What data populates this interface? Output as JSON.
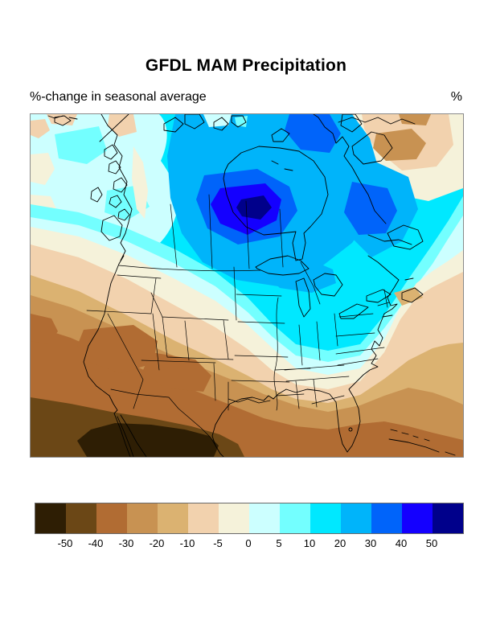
{
  "header": {
    "title": "GFDL MAM Precipitation",
    "subtitle": "%-change in seasonal average",
    "unit_label": "%"
  },
  "colorbar": {
    "colors": [
      "#2e1e04",
      "#6b4716",
      "#b16c33",
      "#c89252",
      "#dbb271",
      "#f2d2ae",
      "#f5f2da",
      "#ccffff",
      "#73ffff",
      "#00e8ff",
      "#00b4fa",
      "#0064fa",
      "#1400ff",
      "#00008b"
    ],
    "tick_labels": [
      "-50",
      "-40",
      "-30",
      "-20",
      "-10",
      "-5",
      "0",
      "5",
      "10",
      "20",
      "30",
      "40",
      "50"
    ]
  },
  "chart_data": {
    "type": "heatmap",
    "subtype": "filled-contour-geographic-map",
    "title": "GFDL MAM Precipitation",
    "subtitle": "%-change in seasonal average",
    "units": "%",
    "region_shown": "North America",
    "legend_position": "bottom",
    "contour_levels": [
      -50,
      -40,
      -30,
      -20,
      -10,
      -5,
      0,
      5,
      10,
      20,
      30,
      40,
      50
    ],
    "palette_hex": [
      "#2e1e04",
      "#6b4716",
      "#b16c33",
      "#c89252",
      "#dbb271",
      "#f2d2ae",
      "#f5f2da",
      "#ccffff",
      "#73ffff",
      "#00e8ff",
      "#00b4fa",
      "#0064fa",
      "#1400ff",
      "#00008b"
    ],
    "readings": [
      {
        "area": "Hudson Bay / central Canada maximum",
        "value_pct": "+40 to +50"
      },
      {
        "area": "Baffin Island and interior Quebec",
        "value_pct": "+30 to +40"
      },
      {
        "area": "Northern Canada broadly",
        "value_pct": "+10 to +30"
      },
      {
        "area": "Southern Canada, Great Lakes, northeastern US",
        "value_pct": "+5 to +20"
      },
      {
        "area": "Iowa / upper Midwest patch",
        "value_pct": "+20 to +30"
      },
      {
        "area": "Central US plains transition",
        "value_pct": "-5 to +5"
      },
      {
        "area": "Southwestern US",
        "value_pct": "-20 to -30"
      },
      {
        "area": "Baja California / Gulf of California / NW Mexico minimum",
        "value_pct": "-40 to -50"
      },
      {
        "area": "Gulf of Mexico, Florida and subtropical Atlantic",
        "value_pct": "-20 to -30"
      },
      {
        "area": "North Atlantic patch (top right)",
        "value_pct": "-10 to -20"
      },
      {
        "area": "Gulf of Alaska / NE Pacific coast",
        "value_pct": "0 to +10"
      }
    ]
  }
}
